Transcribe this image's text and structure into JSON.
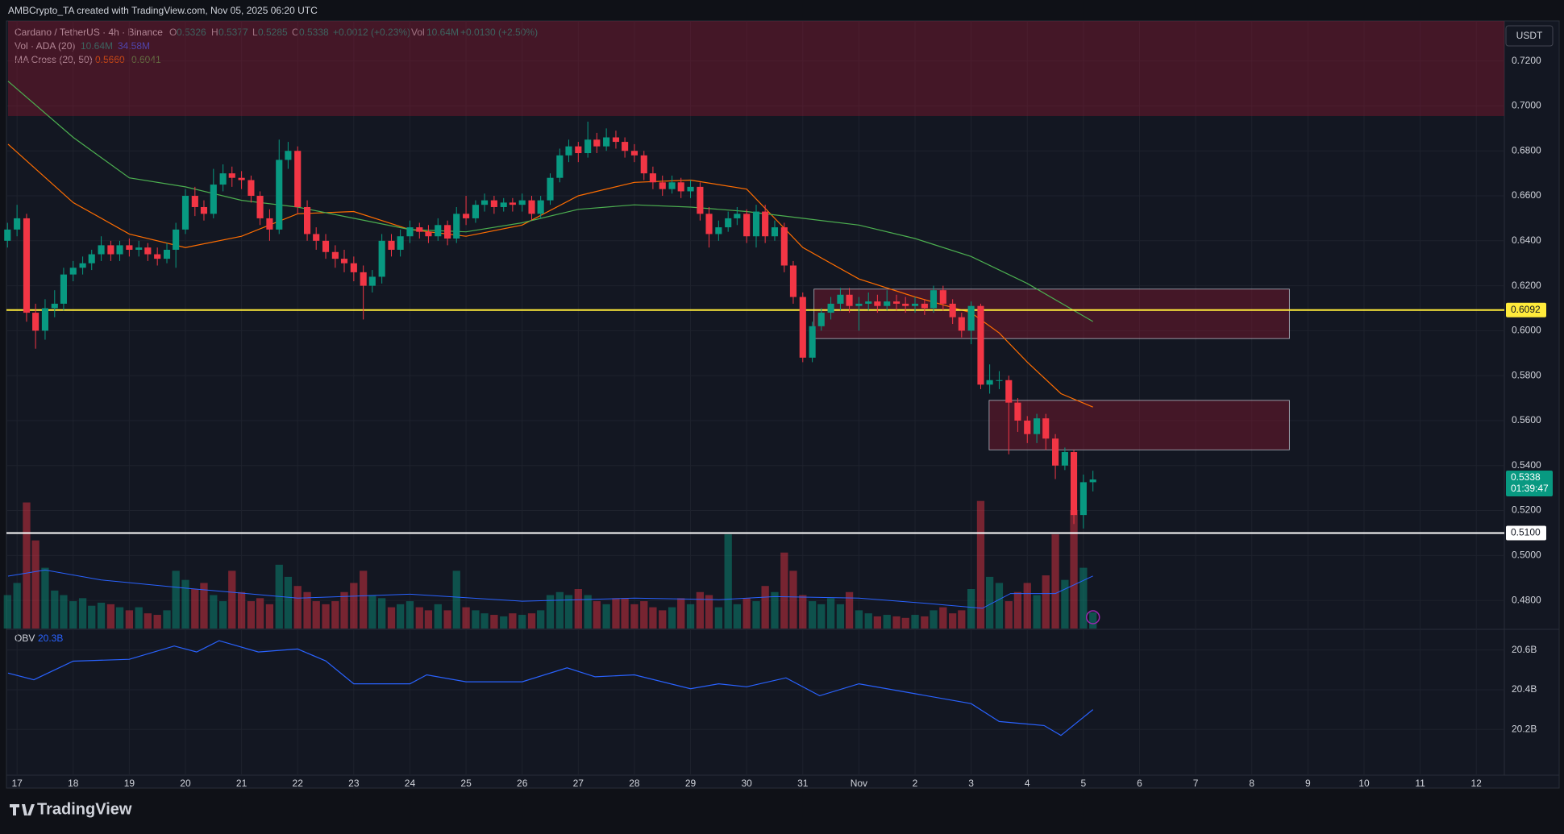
{
  "header": {
    "credit": "AMBCrypto_TA created with TradingView.com, Nov 05, 2025 06:20 UTC"
  },
  "legend": {
    "symbol": "Cardano / TetherUS · 4h · Binance",
    "o_label": "O",
    "o": "0.5326",
    "h_label": "H",
    "h": "0.5377",
    "l_label": "L",
    "l": "0.5285",
    "c_label": "C",
    "c": "0.5338",
    "change": "+0.0012 (+0.23%)",
    "vol_label": "Vol",
    "vol": "10.64M",
    "vol_change": "+0.0130 (+2.50%)",
    "vol_ind": "Vol · ADA (20)",
    "vol_ind_v1": "10.64M",
    "vol_ind_v2": "34.58M",
    "ma_ind": "MA Cross (20, 50)",
    "ma_v1": "0.5660",
    "ma_v2": "0.6041",
    "obv_ind": "OBV",
    "obv_v": "20.3B"
  },
  "currency": "USDT",
  "branding": "TradingView",
  "chart_data": {
    "type": "candlestick",
    "xlim": [
      -0.16,
      26.5
    ],
    "xticks": [
      {
        "value": 0,
        "label": "17"
      },
      {
        "value": 1,
        "label": "18"
      },
      {
        "value": 2,
        "label": "19"
      },
      {
        "value": 3,
        "label": "20"
      },
      {
        "value": 4,
        "label": "21"
      },
      {
        "value": 5,
        "label": "22"
      },
      {
        "value": 6,
        "label": "23"
      },
      {
        "value": 7,
        "label": "24"
      },
      {
        "value": 8,
        "label": "25"
      },
      {
        "value": 9,
        "label": "26"
      },
      {
        "value": 10,
        "label": "27"
      },
      {
        "value": 11,
        "label": "28"
      },
      {
        "value": 12,
        "label": "29"
      },
      {
        "value": 13,
        "label": "30"
      },
      {
        "value": 14,
        "label": "31"
      },
      {
        "value": 15,
        "label": "Nov"
      },
      {
        "value": 16,
        "label": "2"
      },
      {
        "value": 17,
        "label": "3"
      },
      {
        "value": 18,
        "label": "4"
      },
      {
        "value": 19,
        "label": "5"
      },
      {
        "value": 20,
        "label": "6"
      },
      {
        "value": 21,
        "label": "7"
      },
      {
        "value": 22,
        "label": "8"
      },
      {
        "value": 23,
        "label": "9"
      },
      {
        "value": 24,
        "label": "10"
      },
      {
        "value": 25,
        "label": "11"
      },
      {
        "value": 26,
        "label": "12"
      }
    ],
    "ylim": [
      0.4675,
      0.7378
    ],
    "yticks": [
      {
        "value": 0.72,
        "label": "0.7200"
      },
      {
        "value": 0.7,
        "label": "0.7000"
      },
      {
        "value": 0.68,
        "label": "0.6800"
      },
      {
        "value": 0.66,
        "label": "0.6600"
      },
      {
        "value": 0.64,
        "label": "0.6400"
      },
      {
        "value": 0.62,
        "label": "0.6200"
      },
      {
        "value": 0.6,
        "label": "0.6000"
      },
      {
        "value": 0.58,
        "label": "0.5800"
      },
      {
        "value": 0.56,
        "label": "0.5600"
      },
      {
        "value": 0.54,
        "label": "0.5400"
      },
      {
        "value": 0.52,
        "label": "0.5200"
      },
      {
        "value": 0.5,
        "label": "0.5000"
      },
      {
        "value": 0.48,
        "label": "0.4800"
      }
    ],
    "grid": true,
    "up_color": "#089981",
    "down_color": "#f23645",
    "candles": [
      [
        -0.17,
        0.64,
        0.648,
        0.637,
        0.645
      ],
      [
        0,
        0.645,
        0.656,
        0.642,
        0.65
      ],
      [
        0.17,
        0.65,
        0.652,
        0.604,
        0.608
      ],
      [
        0.33,
        0.608,
        0.612,
        0.592,
        0.6
      ],
      [
        0.5,
        0.6,
        0.614,
        0.596,
        0.61
      ],
      [
        0.67,
        0.61,
        0.618,
        0.606,
        0.612
      ],
      [
        0.83,
        0.612,
        0.628,
        0.609,
        0.625
      ],
      [
        1,
        0.625,
        0.631,
        0.622,
        0.628
      ],
      [
        1.17,
        0.628,
        0.633,
        0.625,
        0.63
      ],
      [
        1.33,
        0.63,
        0.636,
        0.627,
        0.634
      ],
      [
        1.5,
        0.634,
        0.642,
        0.631,
        0.638
      ],
      [
        1.67,
        0.638,
        0.64,
        0.631,
        0.634
      ],
      [
        1.83,
        0.634,
        0.64,
        0.631,
        0.638
      ],
      [
        2,
        0.638,
        0.641,
        0.633,
        0.636
      ],
      [
        2.17,
        0.636,
        0.64,
        0.633,
        0.637
      ],
      [
        2.33,
        0.637,
        0.639,
        0.631,
        0.634
      ],
      [
        2.5,
        0.634,
        0.637,
        0.629,
        0.632
      ],
      [
        2.67,
        0.632,
        0.639,
        0.63,
        0.636
      ],
      [
        2.83,
        0.636,
        0.648,
        0.628,
        0.645
      ],
      [
        3,
        0.645,
        0.663,
        0.643,
        0.66
      ],
      [
        3.17,
        0.66,
        0.664,
        0.651,
        0.655
      ],
      [
        3.33,
        0.655,
        0.658,
        0.649,
        0.652
      ],
      [
        3.5,
        0.652,
        0.672,
        0.65,
        0.665
      ],
      [
        3.67,
        0.665,
        0.674,
        0.662,
        0.67
      ],
      [
        3.83,
        0.67,
        0.673,
        0.664,
        0.668
      ],
      [
        4,
        0.668,
        0.671,
        0.663,
        0.667
      ],
      [
        4.17,
        0.667,
        0.669,
        0.657,
        0.66
      ],
      [
        4.33,
        0.66,
        0.662,
        0.647,
        0.65
      ],
      [
        4.5,
        0.65,
        0.654,
        0.64,
        0.645
      ],
      [
        4.67,
        0.645,
        0.685,
        0.643,
        0.676
      ],
      [
        4.83,
        0.676,
        0.684,
        0.672,
        0.68
      ],
      [
        5,
        0.68,
        0.682,
        0.652,
        0.655
      ],
      [
        5.17,
        0.655,
        0.658,
        0.64,
        0.643
      ],
      [
        5.33,
        0.643,
        0.646,
        0.636,
        0.64
      ],
      [
        5.5,
        0.64,
        0.643,
        0.632,
        0.635
      ],
      [
        5.67,
        0.635,
        0.638,
        0.628,
        0.632
      ],
      [
        5.83,
        0.632,
        0.636,
        0.626,
        0.63
      ],
      [
        6,
        0.63,
        0.633,
        0.622,
        0.626
      ],
      [
        6.17,
        0.626,
        0.629,
        0.605,
        0.62
      ],
      [
        6.33,
        0.62,
        0.627,
        0.617,
        0.624
      ],
      [
        6.5,
        0.624,
        0.643,
        0.621,
        0.64
      ],
      [
        6.67,
        0.64,
        0.643,
        0.633,
        0.636
      ],
      [
        6.83,
        0.636,
        0.645,
        0.633,
        0.642
      ],
      [
        7,
        0.642,
        0.649,
        0.639,
        0.646
      ],
      [
        7.17,
        0.646,
        0.648,
        0.641,
        0.644
      ],
      [
        7.33,
        0.644,
        0.647,
        0.639,
        0.642
      ],
      [
        7.5,
        0.642,
        0.65,
        0.64,
        0.647
      ],
      [
        7.67,
        0.647,
        0.649,
        0.638,
        0.641
      ],
      [
        7.83,
        0.641,
        0.655,
        0.639,
        0.652
      ],
      [
        8,
        0.652,
        0.66,
        0.647,
        0.65
      ],
      [
        8.17,
        0.65,
        0.658,
        0.648,
        0.656
      ],
      [
        8.33,
        0.656,
        0.661,
        0.653,
        0.658
      ],
      [
        8.5,
        0.658,
        0.66,
        0.652,
        0.655
      ],
      [
        8.67,
        0.655,
        0.659,
        0.653,
        0.657
      ],
      [
        8.83,
        0.657,
        0.659,
        0.653,
        0.656
      ],
      [
        9,
        0.656,
        0.661,
        0.653,
        0.658
      ],
      [
        9.17,
        0.658,
        0.66,
        0.649,
        0.652
      ],
      [
        9.33,
        0.652,
        0.66,
        0.65,
        0.658
      ],
      [
        9.5,
        0.658,
        0.67,
        0.656,
        0.668
      ],
      [
        9.67,
        0.668,
        0.681,
        0.666,
        0.678
      ],
      [
        9.83,
        0.678,
        0.685,
        0.675,
        0.682
      ],
      [
        10,
        0.682,
        0.684,
        0.675,
        0.679
      ],
      [
        10.17,
        0.679,
        0.693,
        0.677,
        0.685
      ],
      [
        10.33,
        0.685,
        0.688,
        0.679,
        0.682
      ],
      [
        10.5,
        0.682,
        0.69,
        0.68,
        0.686
      ],
      [
        10.67,
        0.686,
        0.689,
        0.681,
        0.684
      ],
      [
        10.83,
        0.684,
        0.686,
        0.677,
        0.68
      ],
      [
        11,
        0.68,
        0.683,
        0.675,
        0.678
      ],
      [
        11.17,
        0.678,
        0.68,
        0.667,
        0.67
      ],
      [
        11.33,
        0.67,
        0.673,
        0.663,
        0.666
      ],
      [
        11.5,
        0.666,
        0.669,
        0.66,
        0.663
      ],
      [
        11.67,
        0.663,
        0.669,
        0.661,
        0.666
      ],
      [
        11.83,
        0.666,
        0.668,
        0.659,
        0.662
      ],
      [
        12,
        0.662,
        0.667,
        0.659,
        0.664
      ],
      [
        12.17,
        0.664,
        0.666,
        0.649,
        0.652
      ],
      [
        12.33,
        0.652,
        0.655,
        0.637,
        0.643
      ],
      [
        12.5,
        0.643,
        0.649,
        0.64,
        0.646
      ],
      [
        12.67,
        0.646,
        0.653,
        0.644,
        0.65
      ],
      [
        12.83,
        0.65,
        0.655,
        0.647,
        0.652
      ],
      [
        13,
        0.652,
        0.654,
        0.639,
        0.642
      ],
      [
        13.17,
        0.642,
        0.656,
        0.637,
        0.653
      ],
      [
        13.33,
        0.653,
        0.656,
        0.639,
        0.642
      ],
      [
        13.5,
        0.642,
        0.649,
        0.64,
        0.646
      ],
      [
        13.67,
        0.646,
        0.648,
        0.626,
        0.629
      ],
      [
        13.83,
        0.629,
        0.631,
        0.612,
        0.615
      ],
      [
        14,
        0.615,
        0.617,
        0.586,
        0.588
      ],
      [
        14.17,
        0.588,
        0.604,
        0.586,
        0.602
      ],
      [
        14.33,
        0.602,
        0.61,
        0.6,
        0.608
      ],
      [
        14.5,
        0.608,
        0.615,
        0.605,
        0.612
      ],
      [
        14.67,
        0.612,
        0.619,
        0.609,
        0.616
      ],
      [
        14.83,
        0.616,
        0.619,
        0.608,
        0.611
      ],
      [
        15,
        0.611,
        0.615,
        0.6,
        0.612
      ],
      [
        15.17,
        0.612,
        0.617,
        0.609,
        0.613
      ],
      [
        15.33,
        0.613,
        0.616,
        0.608,
        0.611
      ],
      [
        15.5,
        0.611,
        0.618,
        0.609,
        0.613
      ],
      [
        15.67,
        0.613,
        0.616,
        0.609,
        0.612
      ],
      [
        15.83,
        0.612,
        0.615,
        0.608,
        0.611
      ],
      [
        16,
        0.611,
        0.615,
        0.608,
        0.612
      ],
      [
        16.17,
        0.612,
        0.614,
        0.607,
        0.61
      ],
      [
        16.33,
        0.61,
        0.62,
        0.608,
        0.618
      ],
      [
        16.5,
        0.618,
        0.62,
        0.609,
        0.612
      ],
      [
        16.67,
        0.612,
        0.614,
        0.603,
        0.606
      ],
      [
        16.83,
        0.606,
        0.608,
        0.597,
        0.6
      ],
      [
        17,
        0.6,
        0.613,
        0.594,
        0.611
      ],
      [
        17.17,
        0.611,
        0.612,
        0.574,
        0.576
      ],
      [
        17.33,
        0.576,
        0.585,
        0.572,
        0.578
      ],
      [
        17.5,
        0.578,
        0.582,
        0.574,
        0.578
      ],
      [
        17.67,
        0.578,
        0.58,
        0.545,
        0.568
      ],
      [
        17.83,
        0.568,
        0.57,
        0.555,
        0.56
      ],
      [
        18,
        0.56,
        0.562,
        0.55,
        0.554
      ],
      [
        18.17,
        0.554,
        0.563,
        0.55,
        0.561
      ],
      [
        18.33,
        0.561,
        0.563,
        0.547,
        0.552
      ],
      [
        18.5,
        0.552,
        0.554,
        0.534,
        0.54
      ],
      [
        18.67,
        0.54,
        0.548,
        0.538,
        0.546
      ],
      [
        18.83,
        0.546,
        0.547,
        0.514,
        0.518
      ],
      [
        19,
        0.518,
        0.536,
        0.512,
        0.5326
      ],
      [
        19.17,
        0.5326,
        0.5377,
        0.5285,
        0.5338
      ]
    ],
    "volume_ylim": [
      0,
      400
    ],
    "volumes": [
      22,
      30,
      83,
      58,
      40,
      25,
      22,
      18,
      20,
      15,
      17,
      16,
      14,
      12,
      14,
      10,
      9,
      12,
      38,
      32,
      26,
      30,
      22,
      18,
      38,
      24,
      18,
      20,
      16,
      42,
      34,
      28,
      24,
      18,
      16,
      18,
      24,
      30,
      38,
      22,
      20,
      14,
      16,
      18,
      14,
      12,
      16,
      12,
      38,
      14,
      12,
      10,
      9,
      8,
      10,
      9,
      10,
      12,
      22,
      24,
      22,
      26,
      22,
      18,
      16,
      20,
      20,
      16,
      18,
      14,
      12,
      14,
      20,
      16,
      24,
      22,
      14,
      62,
      16,
      20,
      18,
      28,
      24,
      50,
      38,
      22,
      18,
      16,
      20,
      16,
      24,
      12,
      10,
      8,
      9,
      8,
      7,
      9,
      8,
      12,
      14,
      10,
      12,
      26,
      84,
      34,
      30,
      18,
      24,
      30,
      22,
      35,
      62,
      32,
      78,
      40,
      10.64
    ],
    "lines": [
      {
        "name": "MA20",
        "color": "#ff6d00",
        "x": [
          -0.16,
          1,
          2,
          3,
          4,
          5,
          6,
          7,
          8,
          9,
          10,
          11,
          12,
          13,
          14,
          15,
          16,
          17,
          17.5,
          18,
          18.6,
          19.17
        ],
        "values": [
          0.683,
          0.657,
          0.643,
          0.637,
          0.642,
          0.652,
          0.653,
          0.645,
          0.642,
          0.647,
          0.66,
          0.666,
          0.667,
          0.663,
          0.637,
          0.623,
          0.615,
          0.608,
          0.599,
          0.586,
          0.572,
          0.566
        ]
      },
      {
        "name": "MA50",
        "color": "#4caf50",
        "x": [
          -0.16,
          1,
          2,
          3,
          4,
          5,
          6,
          7,
          8,
          9,
          10,
          11,
          12,
          13,
          14,
          15,
          16,
          17,
          18,
          19.17
        ],
        "values": [
          0.711,
          0.686,
          0.668,
          0.664,
          0.658,
          0.655,
          0.65,
          0.645,
          0.644,
          0.648,
          0.654,
          0.656,
          0.655,
          0.653,
          0.65,
          0.647,
          0.641,
          0.633,
          0.621,
          0.6041
        ]
      }
    ],
    "volume_ma": {
      "color": "#2962ff",
      "x": [
        -0.16,
        0.5,
        1.5,
        3,
        5,
        7,
        9,
        11,
        12.5,
        13.5,
        15,
        16.2,
        17.2,
        17.7,
        18.5,
        19.17
      ],
      "values": [
        34.5,
        38.5,
        32,
        26.6,
        20,
        22.6,
        18,
        20,
        19,
        21,
        20,
        16.6,
        13.3,
        23,
        23,
        34.58
      ]
    },
    "zones": [
      {
        "x": [
          -0.16,
          26.5
        ],
        "y": [
          0.6955,
          0.7378
        ]
      },
      {
        "x": [
          14.2,
          22.67
        ],
        "y": [
          0.5965,
          0.6185
        ]
      },
      {
        "x": [
          17.32,
          22.67
        ],
        "y": [
          0.547,
          0.569
        ]
      }
    ],
    "levels": [
      {
        "value": 0.6092,
        "label": "0.6092",
        "color": "#ffeb3b"
      },
      {
        "value": 0.51,
        "label": "0.5100",
        "color": "#ffffff"
      }
    ],
    "last_price": {
      "value": 0.5338,
      "label": "0.5338",
      "countdown": "01:39:47"
    },
    "obv": {
      "color": "#2962ff",
      "ylim": [
        19.97,
        20.7
      ],
      "yticks": [
        {
          "value": 20.6,
          "label": "20.6B"
        },
        {
          "value": 20.4,
          "label": "20.4B"
        },
        {
          "value": 20.2,
          "label": "20.2B"
        }
      ],
      "x": [
        -0.16,
        0.3,
        1,
        2,
        2.8,
        3.2,
        3.6,
        4.3,
        5,
        5.5,
        6,
        7,
        7.3,
        8,
        9,
        9.8,
        10.3,
        11,
        12,
        12.5,
        13,
        13.7,
        14.3,
        15,
        16,
        17,
        17.5,
        18.3,
        18.6,
        19.17
      ],
      "values": [
        20.484,
        20.45,
        20.544,
        20.553,
        20.62,
        20.59,
        20.647,
        20.59,
        20.605,
        20.545,
        20.43,
        20.43,
        20.475,
        20.44,
        20.44,
        20.51,
        20.465,
        20.475,
        20.405,
        20.43,
        20.415,
        20.46,
        20.37,
        20.43,
        20.38,
        20.33,
        20.24,
        20.22,
        20.17,
        20.3
      ]
    }
  }
}
